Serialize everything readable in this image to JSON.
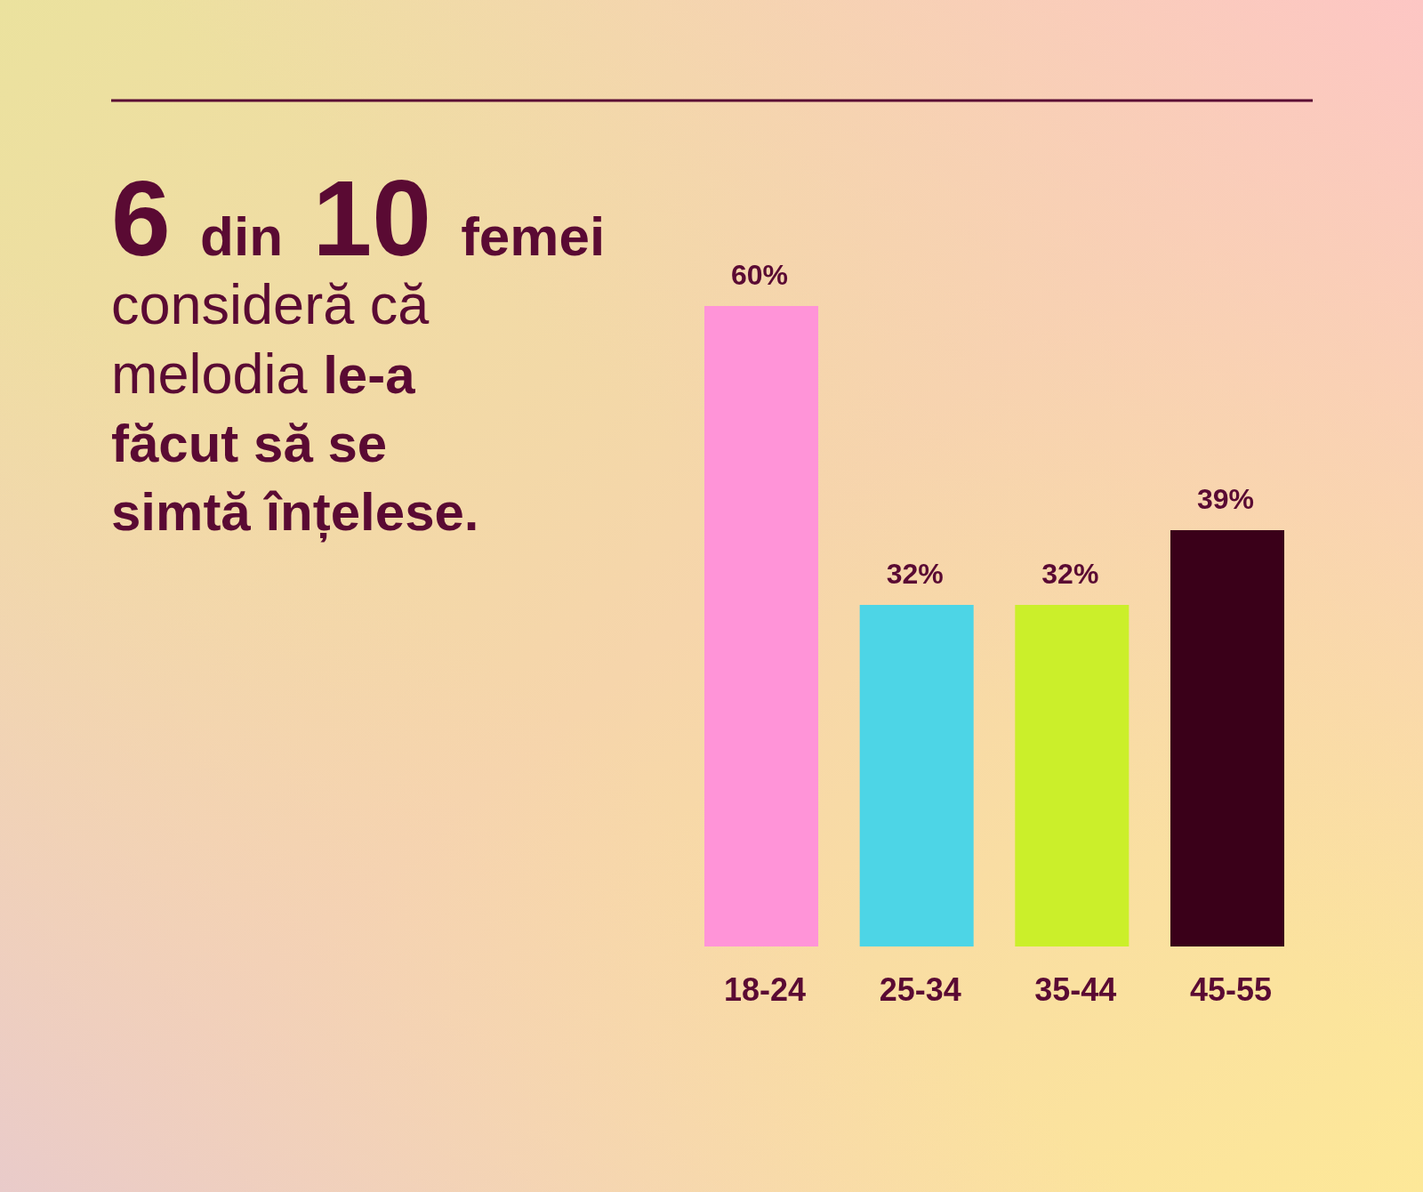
{
  "chart_data": {
    "type": "bar",
    "title": "6 din 10 femei consideră că melodia le-a făcut să se simtă înțelese.",
    "categories": [
      "18-24",
      "25-34",
      "35-44",
      "45-55"
    ],
    "values": [
      60,
      32,
      32,
      39
    ],
    "colors": [
      "#ff94d8",
      "#4dd5e6",
      "#cbef2a",
      "#3a0019"
    ],
    "value_labels": [
      "60%",
      "32%",
      "32%",
      "39%"
    ]
  }
}
